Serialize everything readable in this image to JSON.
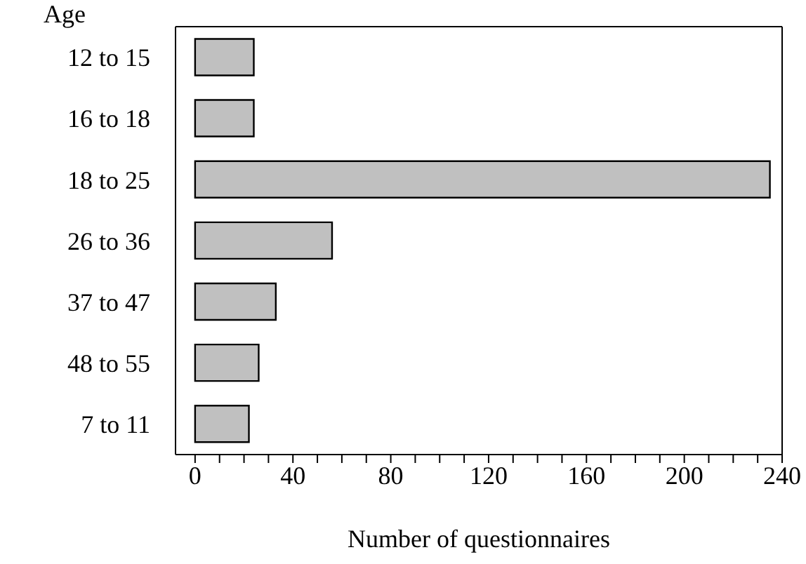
{
  "chart_data": {
    "type": "bar",
    "orientation": "horizontal",
    "xlabel": "Number of questionnaires",
    "ylabel": "Age",
    "categories": [
      "12 to 15",
      "16 to 18",
      "18 to 25",
      "26 to 36",
      "37 to 47",
      "48 to 55",
      "7 to 11"
    ],
    "values": [
      24,
      24,
      235,
      56,
      33,
      26,
      22
    ],
    "color": "#c0c0c0",
    "xlim": [
      -8,
      240
    ],
    "xticks": [
      0,
      {
        "value": 10,
        "label": null
      },
      {
        "value": 20,
        "label": null
      },
      {
        "value": 30,
        "label": null
      },
      40,
      {
        "value": 50,
        "label": null
      },
      {
        "value": 60,
        "label": null
      },
      {
        "value": 70,
        "label": null
      },
      80,
      {
        "value": 90,
        "label": null
      },
      {
        "value": 100,
        "label": null
      },
      {
        "value": 110,
        "label": null
      },
      120,
      {
        "value": 130,
        "label": null
      },
      {
        "value": 140,
        "label": null
      },
      {
        "value": 150,
        "label": null
      },
      160,
      {
        "value": 170,
        "label": null
      },
      {
        "value": 180,
        "label": null
      },
      {
        "value": 190,
        "label": null
      },
      200,
      {
        "value": 210,
        "label": null
      },
      {
        "value": 220,
        "label": null
      },
      {
        "value": 230,
        "label": null
      },
      240
    ],
    "grid": false,
    "legend": false
  }
}
